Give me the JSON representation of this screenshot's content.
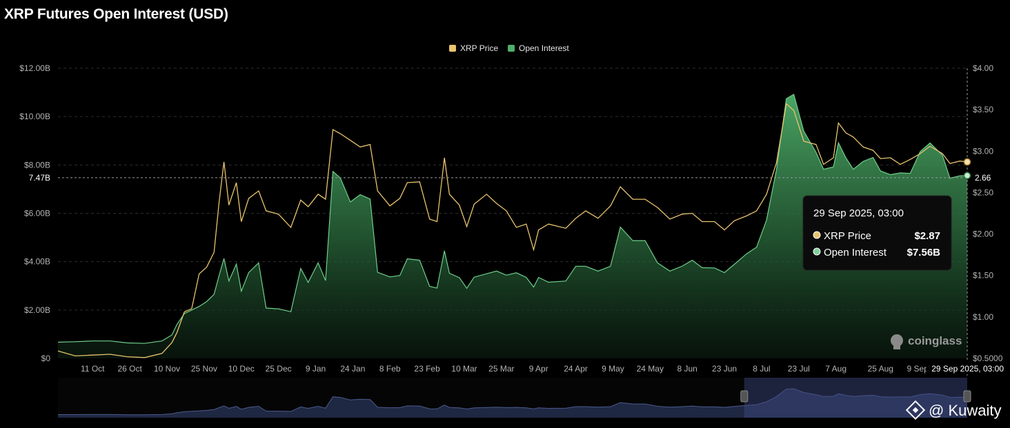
{
  "chart_data": {
    "type": "area",
    "title": "XRP Futures Open Interest (USD)",
    "series": [
      {
        "name": "XRP Price",
        "axis": "right",
        "color": "#e8c46d",
        "points": [
          [
            "2024-09-27",
            0.59
          ],
          [
            "2024-10-04",
            0.53
          ],
          [
            "2024-10-11",
            0.54
          ],
          [
            "2024-10-18",
            0.55
          ],
          [
            "2024-10-25",
            0.52
          ],
          [
            "2024-11-01",
            0.51
          ],
          [
            "2024-11-08",
            0.56
          ],
          [
            "2024-11-12",
            0.69
          ],
          [
            "2024-11-14",
            0.81
          ],
          [
            "2024-11-17",
            1.06
          ],
          [
            "2024-11-20",
            1.1
          ],
          [
            "2024-11-23",
            1.52
          ],
          [
            "2024-11-26",
            1.6
          ],
          [
            "2024-11-29",
            1.78
          ],
          [
            "2024-12-01",
            2.37
          ],
          [
            "2024-12-03",
            2.87
          ],
          [
            "2024-12-05",
            2.35
          ],
          [
            "2024-12-08",
            2.62
          ],
          [
            "2024-12-10",
            2.15
          ],
          [
            "2024-12-13",
            2.43
          ],
          [
            "2024-12-17",
            2.52
          ],
          [
            "2024-12-20",
            2.28
          ],
          [
            "2024-12-25",
            2.24
          ],
          [
            "2024-12-30",
            2.08
          ],
          [
            "2025-01-03",
            2.41
          ],
          [
            "2025-01-06",
            2.33
          ],
          [
            "2025-01-10",
            2.48
          ],
          [
            "2025-01-13",
            2.42
          ],
          [
            "2025-01-16",
            3.26
          ],
          [
            "2025-01-19",
            3.21
          ],
          [
            "2025-01-23",
            3.13
          ],
          [
            "2025-01-27",
            3.05
          ],
          [
            "2025-01-31",
            3.08
          ],
          [
            "2025-02-03",
            2.52
          ],
          [
            "2025-02-08",
            2.34
          ],
          [
            "2025-02-12",
            2.43
          ],
          [
            "2025-02-15",
            2.62
          ],
          [
            "2025-02-20",
            2.63
          ],
          [
            "2025-02-24",
            2.18
          ],
          [
            "2025-02-27",
            2.15
          ],
          [
            "2025-03-02",
            2.92
          ],
          [
            "2025-03-04",
            2.48
          ],
          [
            "2025-03-08",
            2.35
          ],
          [
            "2025-03-11",
            2.09
          ],
          [
            "2025-03-14",
            2.36
          ],
          [
            "2025-03-19",
            2.48
          ],
          [
            "2025-03-23",
            2.37
          ],
          [
            "2025-03-27",
            2.28
          ],
          [
            "2025-03-31",
            2.08
          ],
          [
            "2025-04-04",
            2.12
          ],
          [
            "2025-04-07",
            1.81
          ],
          [
            "2025-04-09",
            2.05
          ],
          [
            "2025-04-13",
            2.12
          ],
          [
            "2025-04-20",
            2.07
          ],
          [
            "2025-04-24",
            2.19
          ],
          [
            "2025-04-28",
            2.28
          ],
          [
            "2025-05-03",
            2.19
          ],
          [
            "2025-05-08",
            2.34
          ],
          [
            "2025-05-12",
            2.57
          ],
          [
            "2025-05-17",
            2.42
          ],
          [
            "2025-05-22",
            2.42
          ],
          [
            "2025-05-27",
            2.32
          ],
          [
            "2025-06-01",
            2.18
          ],
          [
            "2025-06-06",
            2.24
          ],
          [
            "2025-06-10",
            2.25
          ],
          [
            "2025-06-14",
            2.15
          ],
          [
            "2025-06-19",
            2.15
          ],
          [
            "2025-06-23",
            2.05
          ],
          [
            "2025-06-27",
            2.16
          ],
          [
            "2025-07-02",
            2.22
          ],
          [
            "2025-07-06",
            2.28
          ],
          [
            "2025-07-10",
            2.48
          ],
          [
            "2025-07-14",
            2.86
          ],
          [
            "2025-07-18",
            3.57
          ],
          [
            "2025-07-21",
            3.49
          ],
          [
            "2025-07-25",
            3.12
          ],
          [
            "2025-07-30",
            3.08
          ],
          [
            "2025-08-02",
            2.84
          ],
          [
            "2025-08-06",
            2.92
          ],
          [
            "2025-08-08",
            3.34
          ],
          [
            "2025-08-11",
            3.22
          ],
          [
            "2025-08-14",
            3.17
          ],
          [
            "2025-08-18",
            3.05
          ],
          [
            "2025-08-22",
            3.01
          ],
          [
            "2025-08-25",
            2.91
          ],
          [
            "2025-08-29",
            2.92
          ],
          [
            "2025-09-02",
            2.84
          ],
          [
            "2025-09-06",
            2.9
          ],
          [
            "2025-09-10",
            2.97
          ],
          [
            "2025-09-14",
            3.06
          ],
          [
            "2025-09-19",
            2.97
          ],
          [
            "2025-09-22",
            2.85
          ],
          [
            "2025-09-26",
            2.88
          ],
          [
            "2025-09-29",
            2.87
          ]
        ]
      },
      {
        "name": "Open Interest",
        "axis": "left",
        "color": "#4fae6a",
        "points": [
          [
            "2024-09-27",
            0.67
          ],
          [
            "2024-10-04",
            0.69
          ],
          [
            "2024-10-11",
            0.72
          ],
          [
            "2024-10-18",
            0.72
          ],
          [
            "2024-10-25",
            0.64
          ],
          [
            "2024-11-01",
            0.62
          ],
          [
            "2024-11-08",
            0.72
          ],
          [
            "2024-11-12",
            0.97
          ],
          [
            "2024-11-14",
            1.4
          ],
          [
            "2024-11-17",
            1.85
          ],
          [
            "2024-11-20",
            2.0
          ],
          [
            "2024-11-23",
            2.15
          ],
          [
            "2024-11-26",
            2.35
          ],
          [
            "2024-11-29",
            2.65
          ],
          [
            "2024-12-01",
            3.41
          ],
          [
            "2024-12-03",
            4.13
          ],
          [
            "2024-12-05",
            3.2
          ],
          [
            "2024-12-08",
            3.9
          ],
          [
            "2024-12-10",
            2.78
          ],
          [
            "2024-12-13",
            3.55
          ],
          [
            "2024-12-17",
            3.95
          ],
          [
            "2024-12-20",
            2.08
          ],
          [
            "2024-12-25",
            2.05
          ],
          [
            "2024-12-30",
            1.93
          ],
          [
            "2025-01-03",
            3.72
          ],
          [
            "2025-01-06",
            3.14
          ],
          [
            "2025-01-10",
            3.95
          ],
          [
            "2025-01-13",
            3.22
          ],
          [
            "2025-01-16",
            7.73
          ],
          [
            "2025-01-19",
            7.46
          ],
          [
            "2025-01-23",
            6.47
          ],
          [
            "2025-01-27",
            6.77
          ],
          [
            "2025-01-31",
            6.59
          ],
          [
            "2025-02-03",
            3.56
          ],
          [
            "2025-02-08",
            3.37
          ],
          [
            "2025-02-12",
            3.43
          ],
          [
            "2025-02-15",
            4.12
          ],
          [
            "2025-02-20",
            4.06
          ],
          [
            "2025-02-24",
            2.98
          ],
          [
            "2025-02-27",
            2.91
          ],
          [
            "2025-03-02",
            4.45
          ],
          [
            "2025-03-04",
            3.52
          ],
          [
            "2025-03-08",
            3.34
          ],
          [
            "2025-03-11",
            2.9
          ],
          [
            "2025-03-14",
            3.36
          ],
          [
            "2025-03-19",
            3.5
          ],
          [
            "2025-03-23",
            3.61
          ],
          [
            "2025-03-27",
            3.44
          ],
          [
            "2025-03-31",
            3.54
          ],
          [
            "2025-04-04",
            3.35
          ],
          [
            "2025-04-07",
            2.95
          ],
          [
            "2025-04-09",
            3.35
          ],
          [
            "2025-04-13",
            3.15
          ],
          [
            "2025-04-20",
            3.2
          ],
          [
            "2025-04-24",
            3.81
          ],
          [
            "2025-04-28",
            3.81
          ],
          [
            "2025-05-03",
            3.61
          ],
          [
            "2025-05-08",
            3.81
          ],
          [
            "2025-05-12",
            5.43
          ],
          [
            "2025-05-17",
            4.87
          ],
          [
            "2025-05-22",
            4.87
          ],
          [
            "2025-05-27",
            3.95
          ],
          [
            "2025-06-01",
            3.61
          ],
          [
            "2025-06-06",
            3.82
          ],
          [
            "2025-06-10",
            4.06
          ],
          [
            "2025-06-14",
            3.75
          ],
          [
            "2025-06-19",
            3.74
          ],
          [
            "2025-06-23",
            3.55
          ],
          [
            "2025-06-27",
            3.89
          ],
          [
            "2025-07-02",
            4.33
          ],
          [
            "2025-07-06",
            4.6
          ],
          [
            "2025-07-10",
            5.72
          ],
          [
            "2025-07-14",
            7.81
          ],
          [
            "2025-07-18",
            10.74
          ],
          [
            "2025-07-21",
            10.92
          ],
          [
            "2025-07-25",
            9.4
          ],
          [
            "2025-07-30",
            8.52
          ],
          [
            "2025-08-02",
            7.82
          ],
          [
            "2025-08-06",
            7.92
          ],
          [
            "2025-08-08",
            8.92
          ],
          [
            "2025-08-11",
            8.3
          ],
          [
            "2025-08-14",
            7.82
          ],
          [
            "2025-08-18",
            8.15
          ],
          [
            "2025-08-22",
            8.31
          ],
          [
            "2025-08-25",
            7.75
          ],
          [
            "2025-08-29",
            7.6
          ],
          [
            "2025-09-02",
            7.67
          ],
          [
            "2025-09-06",
            7.65
          ],
          [
            "2025-09-10",
            8.55
          ],
          [
            "2025-09-14",
            8.91
          ],
          [
            "2025-09-19",
            8.4
          ],
          [
            "2025-09-22",
            7.45
          ],
          [
            "2025-09-26",
            7.55
          ],
          [
            "2025-09-29",
            7.56
          ]
        ]
      }
    ],
    "x_ticks": [
      "11 Oct",
      "26 Oct",
      "10 Nov",
      "25 Nov",
      "10 Dec",
      "25 Dec",
      "9 Jan",
      "24 Jan",
      "8 Feb",
      "23 Feb",
      "10 Mar",
      "25 Mar",
      "9 Apr",
      "24 Apr",
      "9 May",
      "24 May",
      "8 Jun",
      "23 Jun",
      "8 Jul",
      "23 Jul",
      "7 Aug",
      "25 Aug",
      "9 Sep"
    ],
    "x_tick_dates": [
      "2024-10-11",
      "2024-10-26",
      "2024-11-10",
      "2024-11-25",
      "2024-12-10",
      "2024-12-25",
      "2025-01-09",
      "2025-01-24",
      "2025-02-08",
      "2025-02-23",
      "2025-03-10",
      "2025-03-25",
      "2025-04-09",
      "2025-04-24",
      "2025-05-09",
      "2025-05-24",
      "2025-06-08",
      "2025-06-23",
      "2025-07-08",
      "2025-07-23",
      "2025-08-07",
      "2025-08-25",
      "2025-09-09"
    ],
    "y_left_ticks": [
      "$0",
      "$2.00B",
      "$4.00B",
      "$6.00B",
      "$8.00B",
      "$10.00B",
      "$12.00B"
    ],
    "y_left_values": [
      0,
      2,
      4,
      6,
      8,
      10,
      12
    ],
    "y_right_ticks": [
      "$0.5000",
      "$1.00",
      "$1.50",
      "$2.00",
      "$2.50",
      "$3.00",
      "$3.50",
      "$4.00"
    ],
    "y_right_values": [
      0.5,
      1.0,
      1.5,
      2.0,
      2.5,
      3.0,
      3.5,
      4.0
    ],
    "ylim_left": [
      0,
      12
    ],
    "ylim_right": [
      0.5,
      4.0
    ],
    "x_range": [
      "2024-09-27",
      "2025-09-29"
    ],
    "grid": "horizontal dashed",
    "legend_position": "top-center",
    "crosshair": {
      "date": "2025-09-29",
      "x_label": "29 Sep 2025, 03:00",
      "left_label": "7.47B",
      "left_value": 7.47,
      "right_label": "2.66",
      "right_value": 2.66
    },
    "tooltip": {
      "title": "29 Sep 2025, 03:00",
      "rows": [
        {
          "label": "XRP Price",
          "value": "$2.87"
        },
        {
          "label": "Open Interest",
          "value": "$7.56B"
        }
      ]
    },
    "navigator": {
      "selected_range": [
        "2025-07-01",
        "2025-09-29"
      ]
    }
  },
  "watermark": "coinglass",
  "credit": "@ Kuwaity",
  "colors": {
    "price": "#e8c46d",
    "oi": "#4fae6a",
    "background": "#000000",
    "grid": "#2e2e2e",
    "navigator_fill": "#2a3559",
    "navigator_line": "#4c5a8f"
  }
}
